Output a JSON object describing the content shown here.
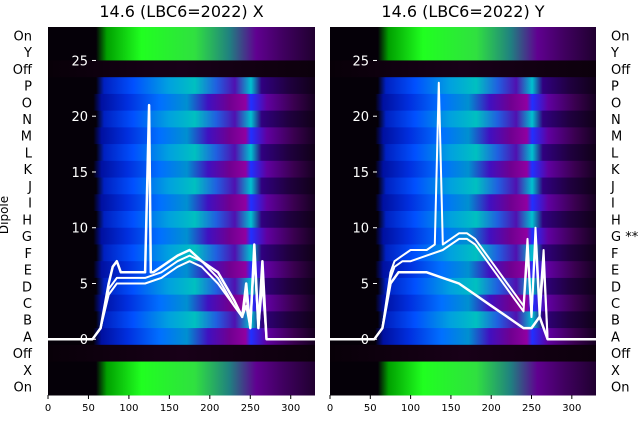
{
  "chart_data": [
    {
      "type": "heatmap",
      "title": "14.6 (LBC6=2022) X",
      "ylabel": "Dipole",
      "xlim": [
        0,
        330
      ],
      "ylim": [
        -5,
        28
      ],
      "xticks": [
        0,
        50,
        100,
        150,
        200,
        250,
        300
      ],
      "yticks": [
        0,
        5,
        10,
        15,
        20,
        25
      ],
      "categories": [
        "On",
        "Y",
        "Off",
        "P",
        "O",
        "N",
        "M",
        "L",
        "K",
        "J",
        "I",
        "H",
        "G",
        "F",
        "E",
        "D",
        "C",
        "B",
        "A",
        "Off",
        "X",
        "On"
      ],
      "overlay": {
        "type": "line",
        "series": [
          {
            "x": [
              0,
              55,
              65,
              75,
              85,
              100,
              120,
              140,
              160,
              175,
              190,
              210,
              230,
              240,
              245,
              250,
              255,
              260,
              265,
              270,
              330
            ],
            "y": [
              0,
              0,
              1,
              4,
              5,
              5,
              5,
              5.5,
              6.5,
              7,
              6.5,
              5,
              3,
              2,
              3,
              1,
              8,
              1,
              6,
              0,
              0
            ]
          },
          {
            "x": [
              0,
              55,
              65,
              75,
              85,
              100,
              120,
              140,
              160,
              175,
              190,
              210,
              230,
              240,
              245,
              250,
              255,
              260,
              265,
              270,
              330
            ],
            "y": [
              0,
              0,
              1,
              4.5,
              5.5,
              5.5,
              5.5,
              6,
              7,
              7.5,
              7,
              5.5,
              3,
              2,
              4,
              1,
              7.5,
              1,
              5,
              0,
              0
            ]
          },
          {
            "x": [
              0,
              55,
              65,
              75,
              80,
              85,
              90,
              100,
              120,
              125,
              127,
              130,
              140,
              150,
              160,
              175,
              190,
              210,
              230,
              240,
              245,
              250,
              255,
              260,
              265,
              270,
              330
            ],
            "y": [
              0,
              0,
              1,
              5,
              6.5,
              7,
              6,
              6,
              6,
              21,
              6,
              6,
              6.5,
              7,
              7.5,
              8,
              7,
              6,
              3.5,
              2,
              5,
              1,
              8.5,
              1,
              7,
              0,
              0
            ]
          }
        ]
      }
    },
    {
      "type": "heatmap",
      "title": "14.6 (LBC6=2022) Y",
      "ylabel": "",
      "xlim": [
        0,
        330
      ],
      "ylim": [
        -5,
        28
      ],
      "xticks": [
        0,
        50,
        100,
        150,
        200,
        250,
        300
      ],
      "yticks": [
        0,
        5,
        10,
        15,
        20,
        25
      ],
      "categories": [
        "On",
        "Y",
        "Off",
        "P",
        "O",
        "N",
        "M",
        "L",
        "K",
        "J",
        "I",
        "H",
        "G **",
        "F",
        "E",
        "D",
        "C",
        "B",
        "A",
        "Off",
        "X",
        "On"
      ],
      "overlay": {
        "type": "line",
        "series": [
          {
            "x": [
              0,
              55,
              65,
              75,
              80,
              90,
              100,
              120,
              130,
              135,
              140,
              150,
              160,
              170,
              180,
              200,
              220,
              240,
              245,
              250,
              255,
              260,
              265,
              270,
              330
            ],
            "y": [
              0,
              0,
              1,
              6,
              7,
              7.5,
              8,
              8,
              8.5,
              23,
              8.5,
              9,
              9.5,
              9.5,
              9,
              7,
              5,
              3,
              9,
              2,
              10,
              3,
              8,
              0,
              0
            ]
          },
          {
            "x": [
              0,
              55,
              65,
              75,
              80,
              90,
              100,
              120,
              140,
              160,
              170,
              180,
              200,
              220,
              240,
              245,
              250,
              255,
              260,
              265,
              270,
              330
            ],
            "y": [
              0,
              0,
              1,
              5.5,
              6.5,
              7,
              7,
              7.5,
              8,
              9,
              9,
              8.5,
              6.5,
              4.5,
              2.5,
              8,
              2,
              9,
              2,
              7,
              0,
              0
            ]
          },
          {
            "x": [
              0,
              55,
              65,
              75,
              85,
              100,
              120,
              140,
              160,
              180,
              200,
              220,
              240,
              250,
              260,
              270,
              330
            ],
            "y": [
              0,
              0,
              1,
              5,
              6,
              6,
              6,
              5.5,
              5,
              4,
              3,
              2,
              1,
              1,
              2,
              0,
              0
            ]
          }
        ]
      }
    }
  ]
}
